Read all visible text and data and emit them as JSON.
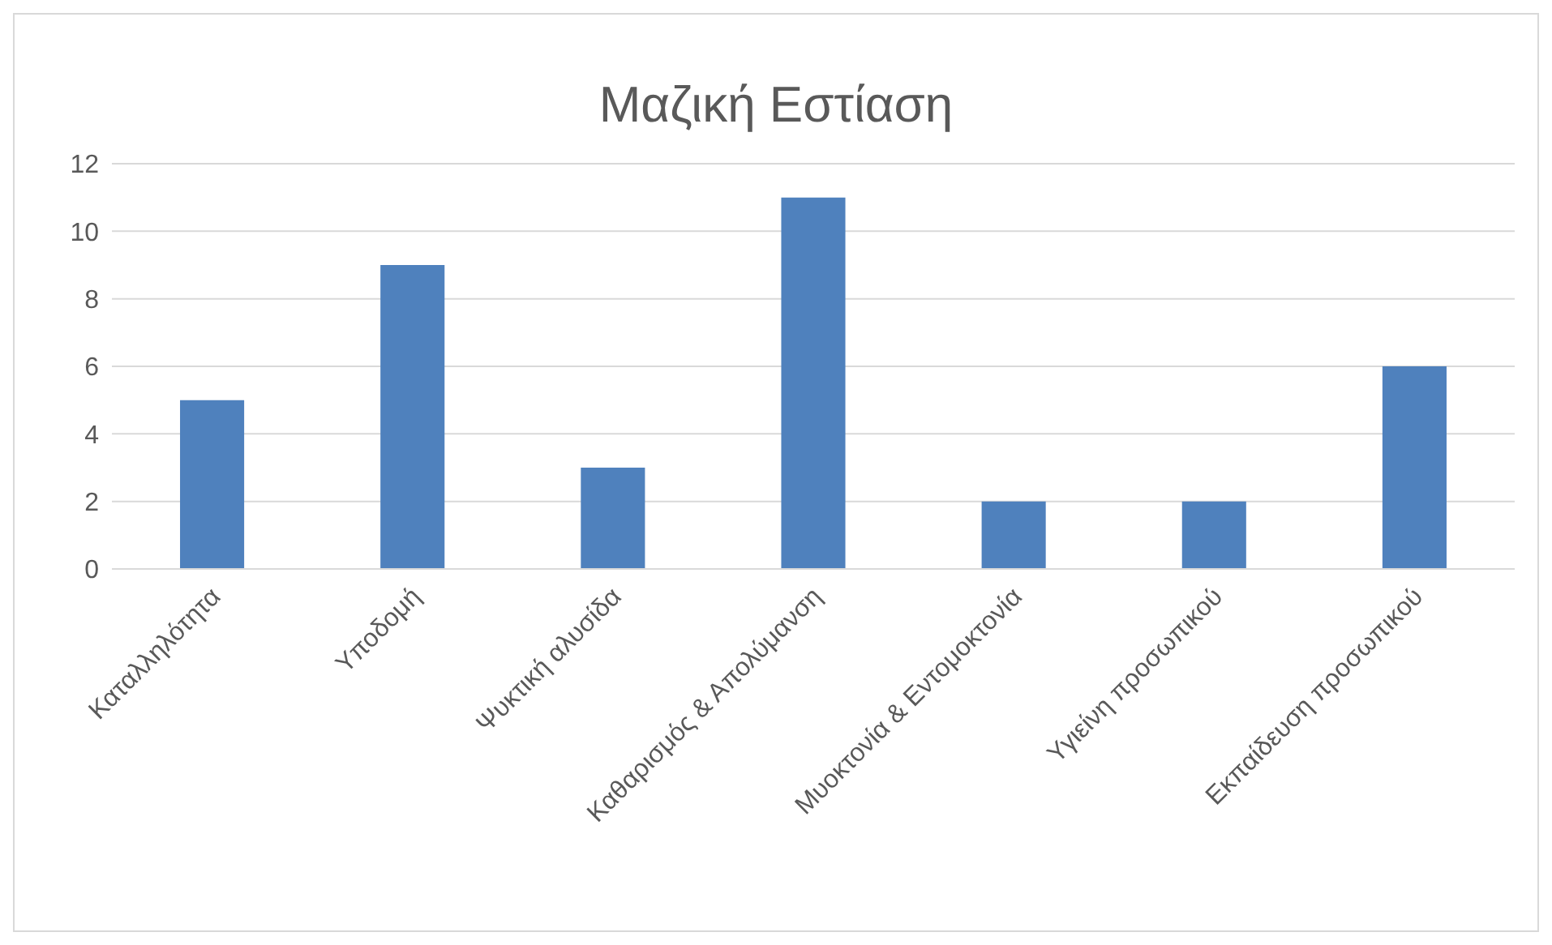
{
  "chart_data": {
    "type": "bar",
    "title": "Μαζική Εστίαση",
    "categories": [
      "Καταλληλότητα",
      "Υποδομή",
      "Ψυκτική αλυσίδα",
      "Καθαρισμός & Απολύμανση",
      "Μυοκτονία & Εντομοκτονία",
      "Υγιείνη προσωπικού",
      "Εκπαίδευση προσωπικού"
    ],
    "values": [
      5,
      9,
      3,
      11,
      2,
      2,
      6
    ],
    "color": "#4f81bd",
    "ylim": [
      0,
      12
    ],
    "yticks": [
      0,
      2,
      4,
      6,
      8,
      10,
      12
    ],
    "grid": "y"
  }
}
